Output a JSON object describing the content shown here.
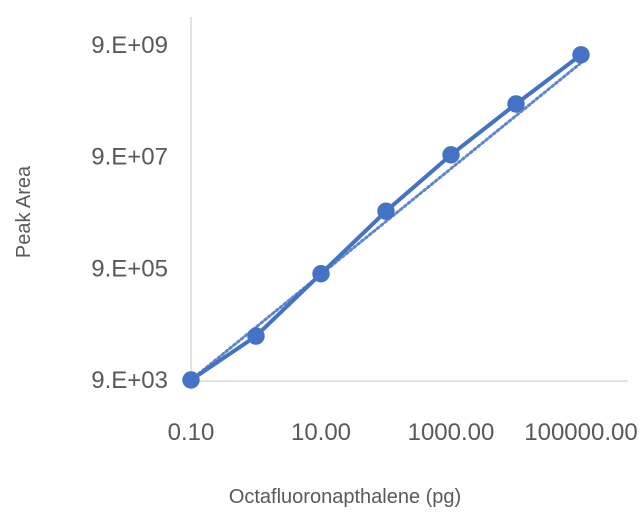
{
  "chart_data": {
    "type": "scatter",
    "xlabel": "Octafluoronapthalene (pg)",
    "ylabel": "Peak Area",
    "x_scale": "log",
    "y_scale": "log",
    "xlim": [
      0.1,
      1000000
    ],
    "ylim": [
      9000,
      9000000000
    ],
    "x_ticks": [
      {
        "value": 0.1,
        "label": "0.10"
      },
      {
        "value": 10,
        "label": "10.00"
      },
      {
        "value": 1000,
        "label": "1000.00"
      },
      {
        "value": 100000,
        "label": "100000.00"
      }
    ],
    "y_ticks": [
      {
        "value": 9000,
        "label": "9.E+03"
      },
      {
        "value": 900000,
        "label": "9.E+05"
      },
      {
        "value": 90000000,
        "label": "9.E+07"
      },
      {
        "value": 9000000000,
        "label": "9.E+09"
      }
    ],
    "grid": false,
    "legend": "none",
    "series": [
      {
        "color": "#4472C4",
        "x": [
          0.1,
          1,
          10,
          100,
          1000,
          10000,
          100000
        ],
        "y": [
          9000,
          55000,
          720000,
          9500000,
          97000000,
          790000000,
          6000000000
        ]
      }
    ],
    "trendline": {
      "style": "dotted",
      "color": "#4472C4"
    }
  }
}
